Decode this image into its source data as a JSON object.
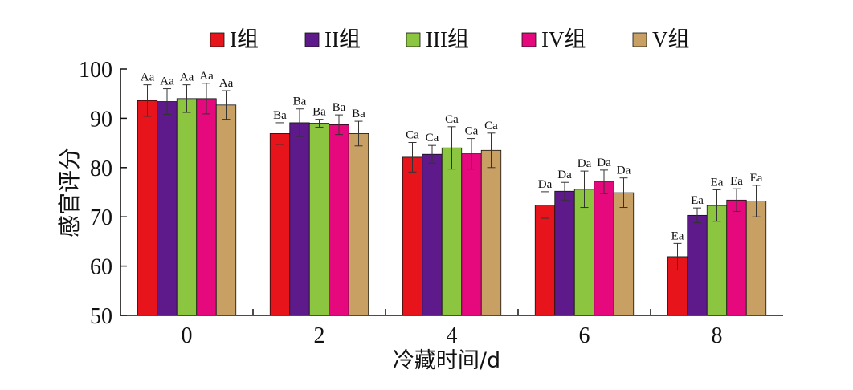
{
  "chart_data": {
    "type": "bar",
    "categories": [
      "0",
      "2",
      "4",
      "6",
      "8"
    ],
    "xlabel": "冷藏时间/d",
    "ylabel": "感官评分",
    "ylim": [
      50,
      100
    ],
    "yticks": [
      50,
      60,
      70,
      80,
      90,
      100
    ],
    "grid": false,
    "legend_position": "top",
    "series": [
      {
        "name": "I组",
        "color": "#e8141b",
        "values": [
          93.6,
          86.9,
          82.1,
          72.4,
          61.9
        ],
        "errors": [
          3.2,
          2.2,
          3.0,
          2.7,
          2.7
        ],
        "labels": [
          "Aa",
          "Ba",
          "Ca",
          "Da",
          "Ea"
        ]
      },
      {
        "name": "II组",
        "color": "#5e1a8a",
        "values": [
          93.4,
          89.1,
          82.7,
          75.2,
          70.3
        ],
        "errors": [
          2.6,
          2.8,
          1.8,
          1.8,
          1.5
        ],
        "labels": [
          "Aa",
          "Ba",
          "Ca",
          "Da",
          "Ea"
        ]
      },
      {
        "name": "III组",
        "color": "#8cc53f",
        "values": [
          94.0,
          89.0,
          84.0,
          75.6,
          72.3
        ],
        "errors": [
          2.8,
          0.8,
          4.3,
          3.7,
          3.2
        ],
        "labels": [
          "Aa",
          "Ba",
          "Ca",
          "Da",
          "Ea"
        ]
      },
      {
        "name": "IV组",
        "color": "#e6097e",
        "values": [
          94.0,
          88.7,
          82.8,
          77.1,
          73.4
        ],
        "errors": [
          3.1,
          2.0,
          3.1,
          2.4,
          2.3
        ],
        "labels": [
          "Aa",
          "Ba",
          "Ca",
          "Da",
          "Ea"
        ]
      },
      {
        "name": "V组",
        "color": "#c9a063",
        "values": [
          92.7,
          86.9,
          83.5,
          74.9,
          73.2
        ],
        "errors": [
          2.9,
          2.5,
          3.5,
          3.0,
          3.2
        ],
        "labels": [
          "Aa",
          "Ba",
          "Ca",
          "Da",
          "Ea"
        ]
      }
    ]
  }
}
